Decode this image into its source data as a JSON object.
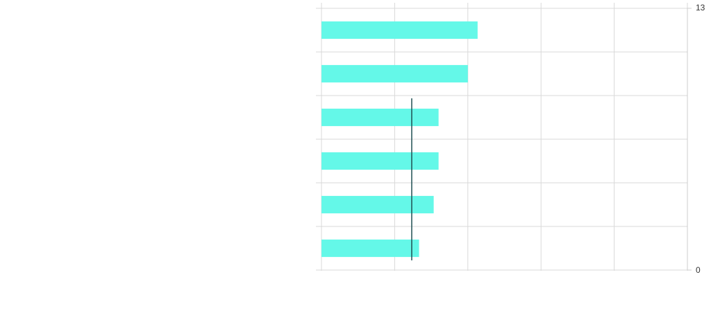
{
  "chart_data": {
    "type": "bar",
    "orientation": "horizontal",
    "title": "",
    "xlabel": "",
    "ylabel": "",
    "categories": [
      "",
      "",
      "",
      "",
      "",
      ""
    ],
    "values": [
      6.4,
      6.0,
      4.8,
      4.8,
      4.6,
      4.0
    ],
    "xlim": [
      0,
      15
    ],
    "x_gridlines": [
      0,
      3,
      6,
      9,
      12,
      15
    ],
    "right_axis_ticks": [
      "13",
      "0"
    ],
    "reference_line_value": 3.7,
    "grid": true,
    "legend": "none",
    "colors": {
      "bar": "#64f8e8",
      "reference_line": "#1f4e52",
      "grid": "#d9d9d9",
      "axis": "#cccccc"
    }
  }
}
